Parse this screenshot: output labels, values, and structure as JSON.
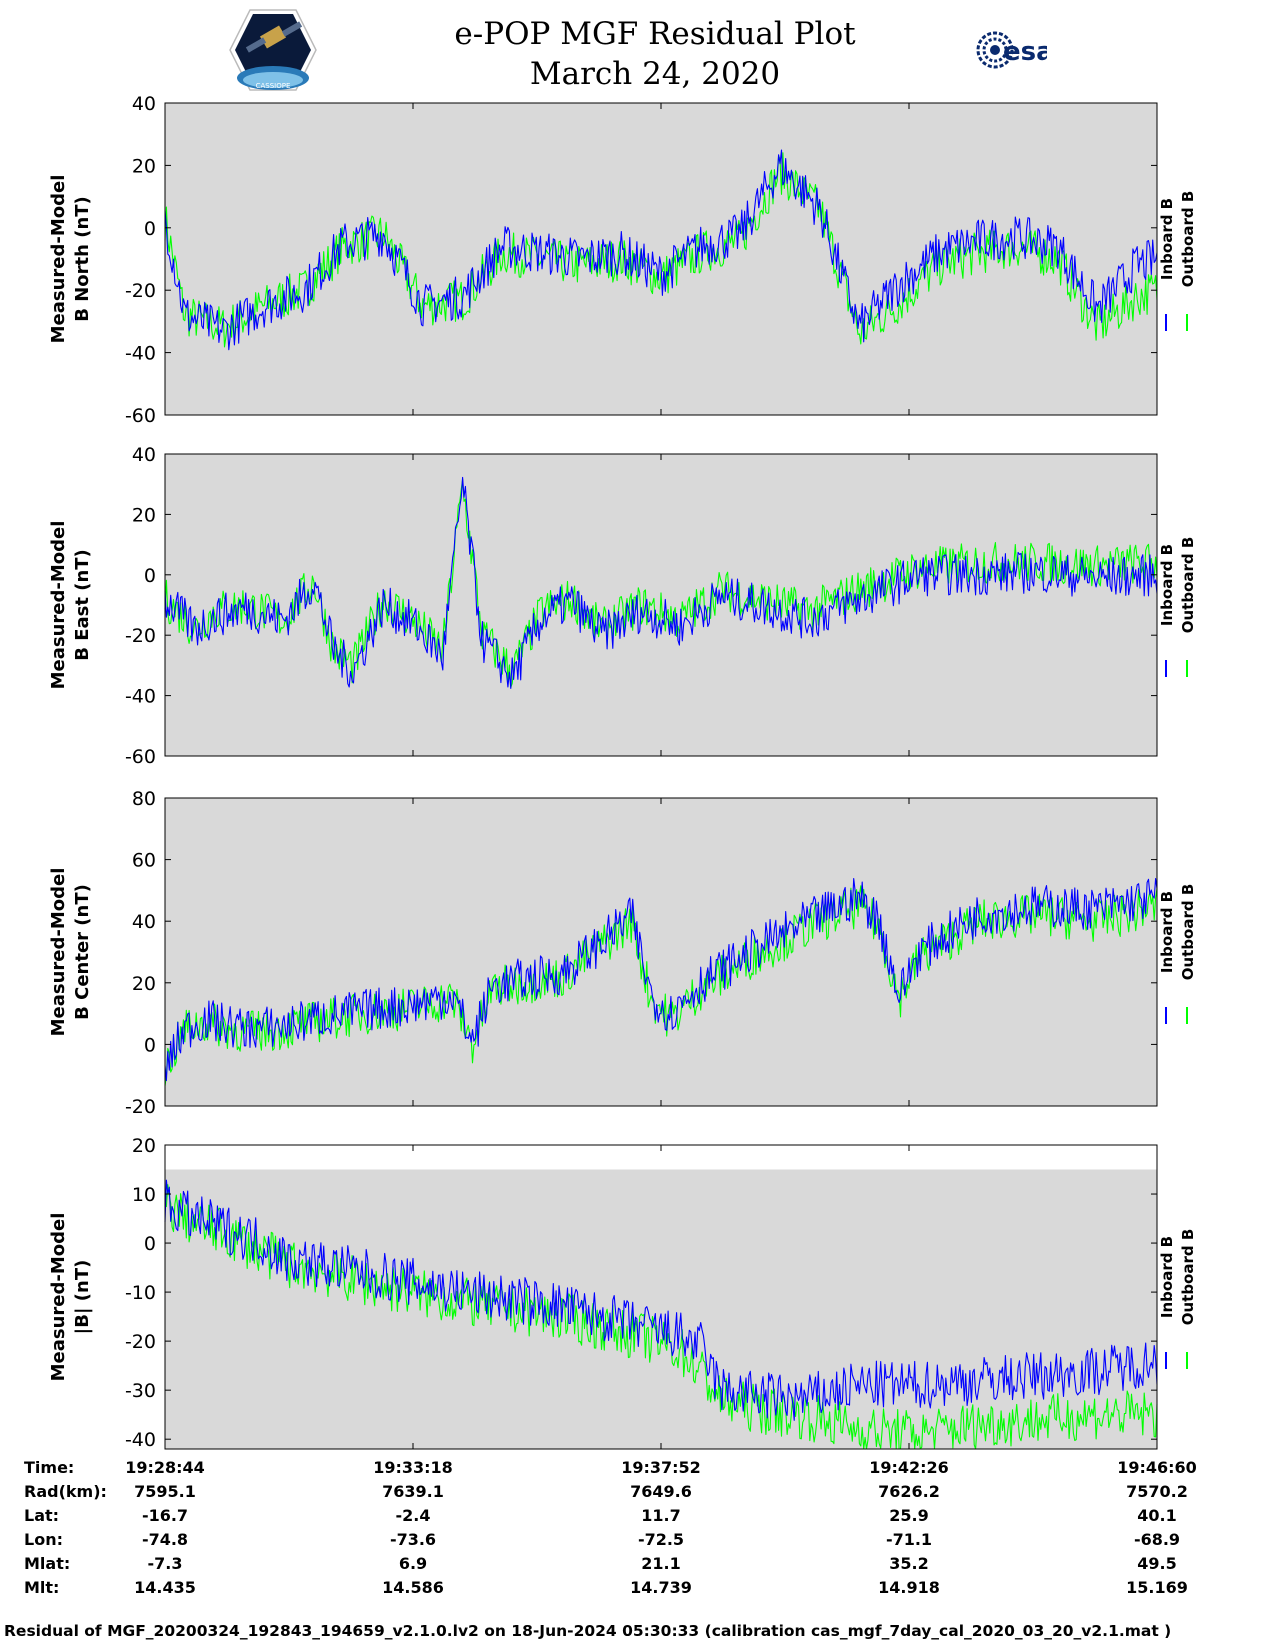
{
  "header": {
    "title": "e-POP MGF Residual Plot",
    "date": "March 24, 2020",
    "left_logo": "CASSIOPE",
    "right_logo": "esa"
  },
  "chart_data": [
    {
      "type": "line",
      "ylabel": [
        "Measured-Model",
        "B North (nT)"
      ],
      "ylim": [
        -60,
        40
      ],
      "yticks": [
        40,
        20,
        0,
        -20,
        -40,
        -60
      ],
      "legend": [
        "Inboard B",
        "Outboard B"
      ],
      "series": [
        {
          "name": "Outboard B",
          "color": "#00ff00",
          "x": [
            0,
            2,
            6,
            10,
            14,
            18,
            22,
            26,
            30,
            34,
            38,
            42,
            46,
            50,
            54,
            58,
            62,
            66,
            70,
            74,
            78,
            82,
            86,
            90,
            94,
            98,
            100
          ],
          "y": [
            3,
            -28,
            -32,
            -25,
            -20,
            -6,
            -2,
            -25,
            -23,
            -8,
            -10,
            -12,
            -10,
            -16,
            -8,
            -4,
            18,
            6,
            -34,
            -24,
            -12,
            -8,
            -6,
            -10,
            -32,
            -22,
            -20
          ]
        },
        {
          "name": "Inboard B",
          "color": "#0000ff",
          "x": [
            0,
            2,
            6,
            10,
            14,
            18,
            22,
            26,
            30,
            34,
            38,
            42,
            46,
            50,
            54,
            58,
            62,
            66,
            70,
            74,
            78,
            82,
            86,
            90,
            94,
            98,
            100
          ],
          "y": [
            3,
            -28,
            -33,
            -25,
            -20,
            -5,
            -2,
            -25,
            -22,
            -6,
            -8,
            -10,
            -8,
            -15,
            -6,
            -2,
            20,
            6,
            -32,
            -18,
            -8,
            -4,
            -3,
            -6,
            -26,
            -12,
            -10
          ]
        }
      ]
    },
    {
      "type": "line",
      "ylabel": [
        "Measured-Model",
        "B East (nT)"
      ],
      "ylim": [
        -60,
        40
      ],
      "yticks": [
        40,
        20,
        0,
        -20,
        -40,
        -60
      ],
      "legend": [
        "Inboard B",
        "Outboard B"
      ],
      "series": [
        {
          "name": "Outboard B",
          "color": "#00ff00",
          "x": [
            0,
            3,
            5,
            8,
            12,
            15,
            17,
            19,
            22,
            25,
            28,
            30,
            32,
            35,
            38,
            41,
            44,
            48,
            52,
            56,
            60,
            65,
            70,
            76,
            82,
            88,
            94,
            100
          ],
          "y": [
            -8,
            -18,
            -12,
            -10,
            -15,
            -2,
            -25,
            -30,
            -8,
            -15,
            -25,
            30,
            -20,
            -32,
            -12,
            -8,
            -18,
            -10,
            -15,
            -5,
            -8,
            -12,
            -5,
            2,
            4,
            4,
            3,
            4
          ]
        },
        {
          "name": "Inboard B",
          "color": "#0000ff",
          "x": [
            0,
            3,
            5,
            8,
            12,
            15,
            17,
            19,
            22,
            25,
            28,
            30,
            32,
            35,
            38,
            41,
            44,
            48,
            52,
            56,
            60,
            65,
            70,
            76,
            82,
            88,
            94,
            100
          ],
          "y": [
            -8,
            -18,
            -14,
            -11,
            -15,
            -2,
            -25,
            -32,
            -10,
            -16,
            -27,
            30,
            -22,
            -34,
            -14,
            -9,
            -20,
            -12,
            -17,
            -7,
            -10,
            -15,
            -8,
            0,
            0,
            1,
            -1,
            0
          ]
        }
      ]
    },
    {
      "type": "line",
      "ylabel": [
        "Measured-Model",
        "B Center (nT)"
      ],
      "ylim": [
        -20,
        80
      ],
      "yticks": [
        80,
        60,
        40,
        20,
        0,
        -20
      ],
      "legend": [
        "Inboard B",
        "Outboard B"
      ],
      "series": [
        {
          "name": "Outboard B",
          "color": "#00ff00",
          "x": [
            0,
            2,
            4,
            8,
            12,
            16,
            20,
            25,
            29,
            31,
            33,
            36,
            40,
            44,
            47,
            49,
            51,
            54,
            60,
            66,
            70,
            72,
            74,
            76,
            82,
            88,
            94,
            100
          ],
          "y": [
            -8,
            5,
            7,
            4,
            5,
            8,
            10,
            12,
            15,
            0,
            18,
            20,
            22,
            32,
            40,
            15,
            8,
            18,
            30,
            40,
            45,
            38,
            15,
            28,
            40,
            42,
            40,
            45
          ]
        },
        {
          "name": "Inboard B",
          "color": "#0000ff",
          "x": [
            0,
            2,
            4,
            8,
            12,
            16,
            20,
            25,
            29,
            31,
            33,
            36,
            40,
            44,
            47,
            49,
            51,
            54,
            60,
            66,
            70,
            72,
            74,
            76,
            82,
            88,
            94,
            100
          ],
          "y": [
            -8,
            5,
            8,
            5,
            6,
            9,
            11,
            13,
            16,
            1,
            19,
            21,
            23,
            33,
            42,
            16,
            10,
            20,
            32,
            42,
            48,
            40,
            16,
            30,
            42,
            45,
            44,
            48
          ]
        }
      ]
    },
    {
      "type": "line",
      "ylabel": [
        "Measured-Model",
        "|B| (nT)"
      ],
      "ylim": [
        -42,
        20
      ],
      "yticks": [
        20,
        10,
        0,
        -10,
        -20,
        -30,
        -40
      ],
      "legend": [
        "Inboard B",
        "Outboard B"
      ],
      "series": [
        {
          "name": "Outboard B",
          "color": "#00ff00",
          "x": [
            0,
            3,
            6,
            10,
            12,
            20,
            30,
            40,
            48,
            52,
            54,
            56,
            60,
            64,
            70,
            76,
            82,
            88,
            94,
            100
          ],
          "y": [
            8,
            4,
            2,
            -2,
            -4,
            -8,
            -12,
            -15,
            -19,
            -22,
            -26,
            -32,
            -34,
            -35,
            -38,
            -39,
            -37,
            -36,
            -35,
            -35
          ]
        },
        {
          "name": "Inboard B",
          "color": "#0000ff",
          "x": [
            0,
            3,
            6,
            10,
            12,
            20,
            30,
            40,
            48,
            52,
            54,
            56,
            60,
            64,
            70,
            76,
            82,
            88,
            94,
            100
          ],
          "y": [
            8,
            5,
            3,
            0,
            -3,
            -6,
            -10,
            -13,
            -17,
            -19,
            -21,
            -30,
            -31,
            -32,
            -29,
            -29,
            -28,
            -27,
            -26,
            -24
          ]
        }
      ]
    }
  ],
  "x_axis": {
    "labels": {
      "time": "Time:",
      "rad": "Rad(km):",
      "lat": "Lat:",
      "lon": "Lon:",
      "mlat": "Mlat:",
      "mlt": "Mlt:"
    },
    "ticks": [
      {
        "time": "19:28:44",
        "rad": "7595.1",
        "lat": "-16.7",
        "lon": "-74.8",
        "mlat": "-7.3",
        "mlt": "14.435"
      },
      {
        "time": "19:33:18",
        "rad": "7639.1",
        "lat": "-2.4",
        "lon": "-73.6",
        "mlat": "6.9",
        "mlt": "14.586"
      },
      {
        "time": "19:37:52",
        "rad": "7649.6",
        "lat": "11.7",
        "lon": "-72.5",
        "mlat": "21.1",
        "mlt": "14.739"
      },
      {
        "time": "19:42:26",
        "rad": "7626.2",
        "lat": "25.9",
        "lon": "-71.1",
        "mlat": "35.2",
        "mlt": "14.918"
      },
      {
        "time": "19:46:60",
        "rad": "7570.2",
        "lat": "40.1",
        "lon": "-68.9",
        "mlat": "49.5",
        "mlt": "15.169"
      }
    ]
  },
  "footer": "Residual of MGF_20200324_192843_194659_v2.1.0.lv2 on 18-Jun-2024 05:30:33 (calibration cas_mgf_7day_cal_2020_03_20_v2.1.mat )",
  "colors": {
    "inboard": "#0000ff",
    "outboard": "#00ff00",
    "plot_bg": "#d9d9d9"
  }
}
